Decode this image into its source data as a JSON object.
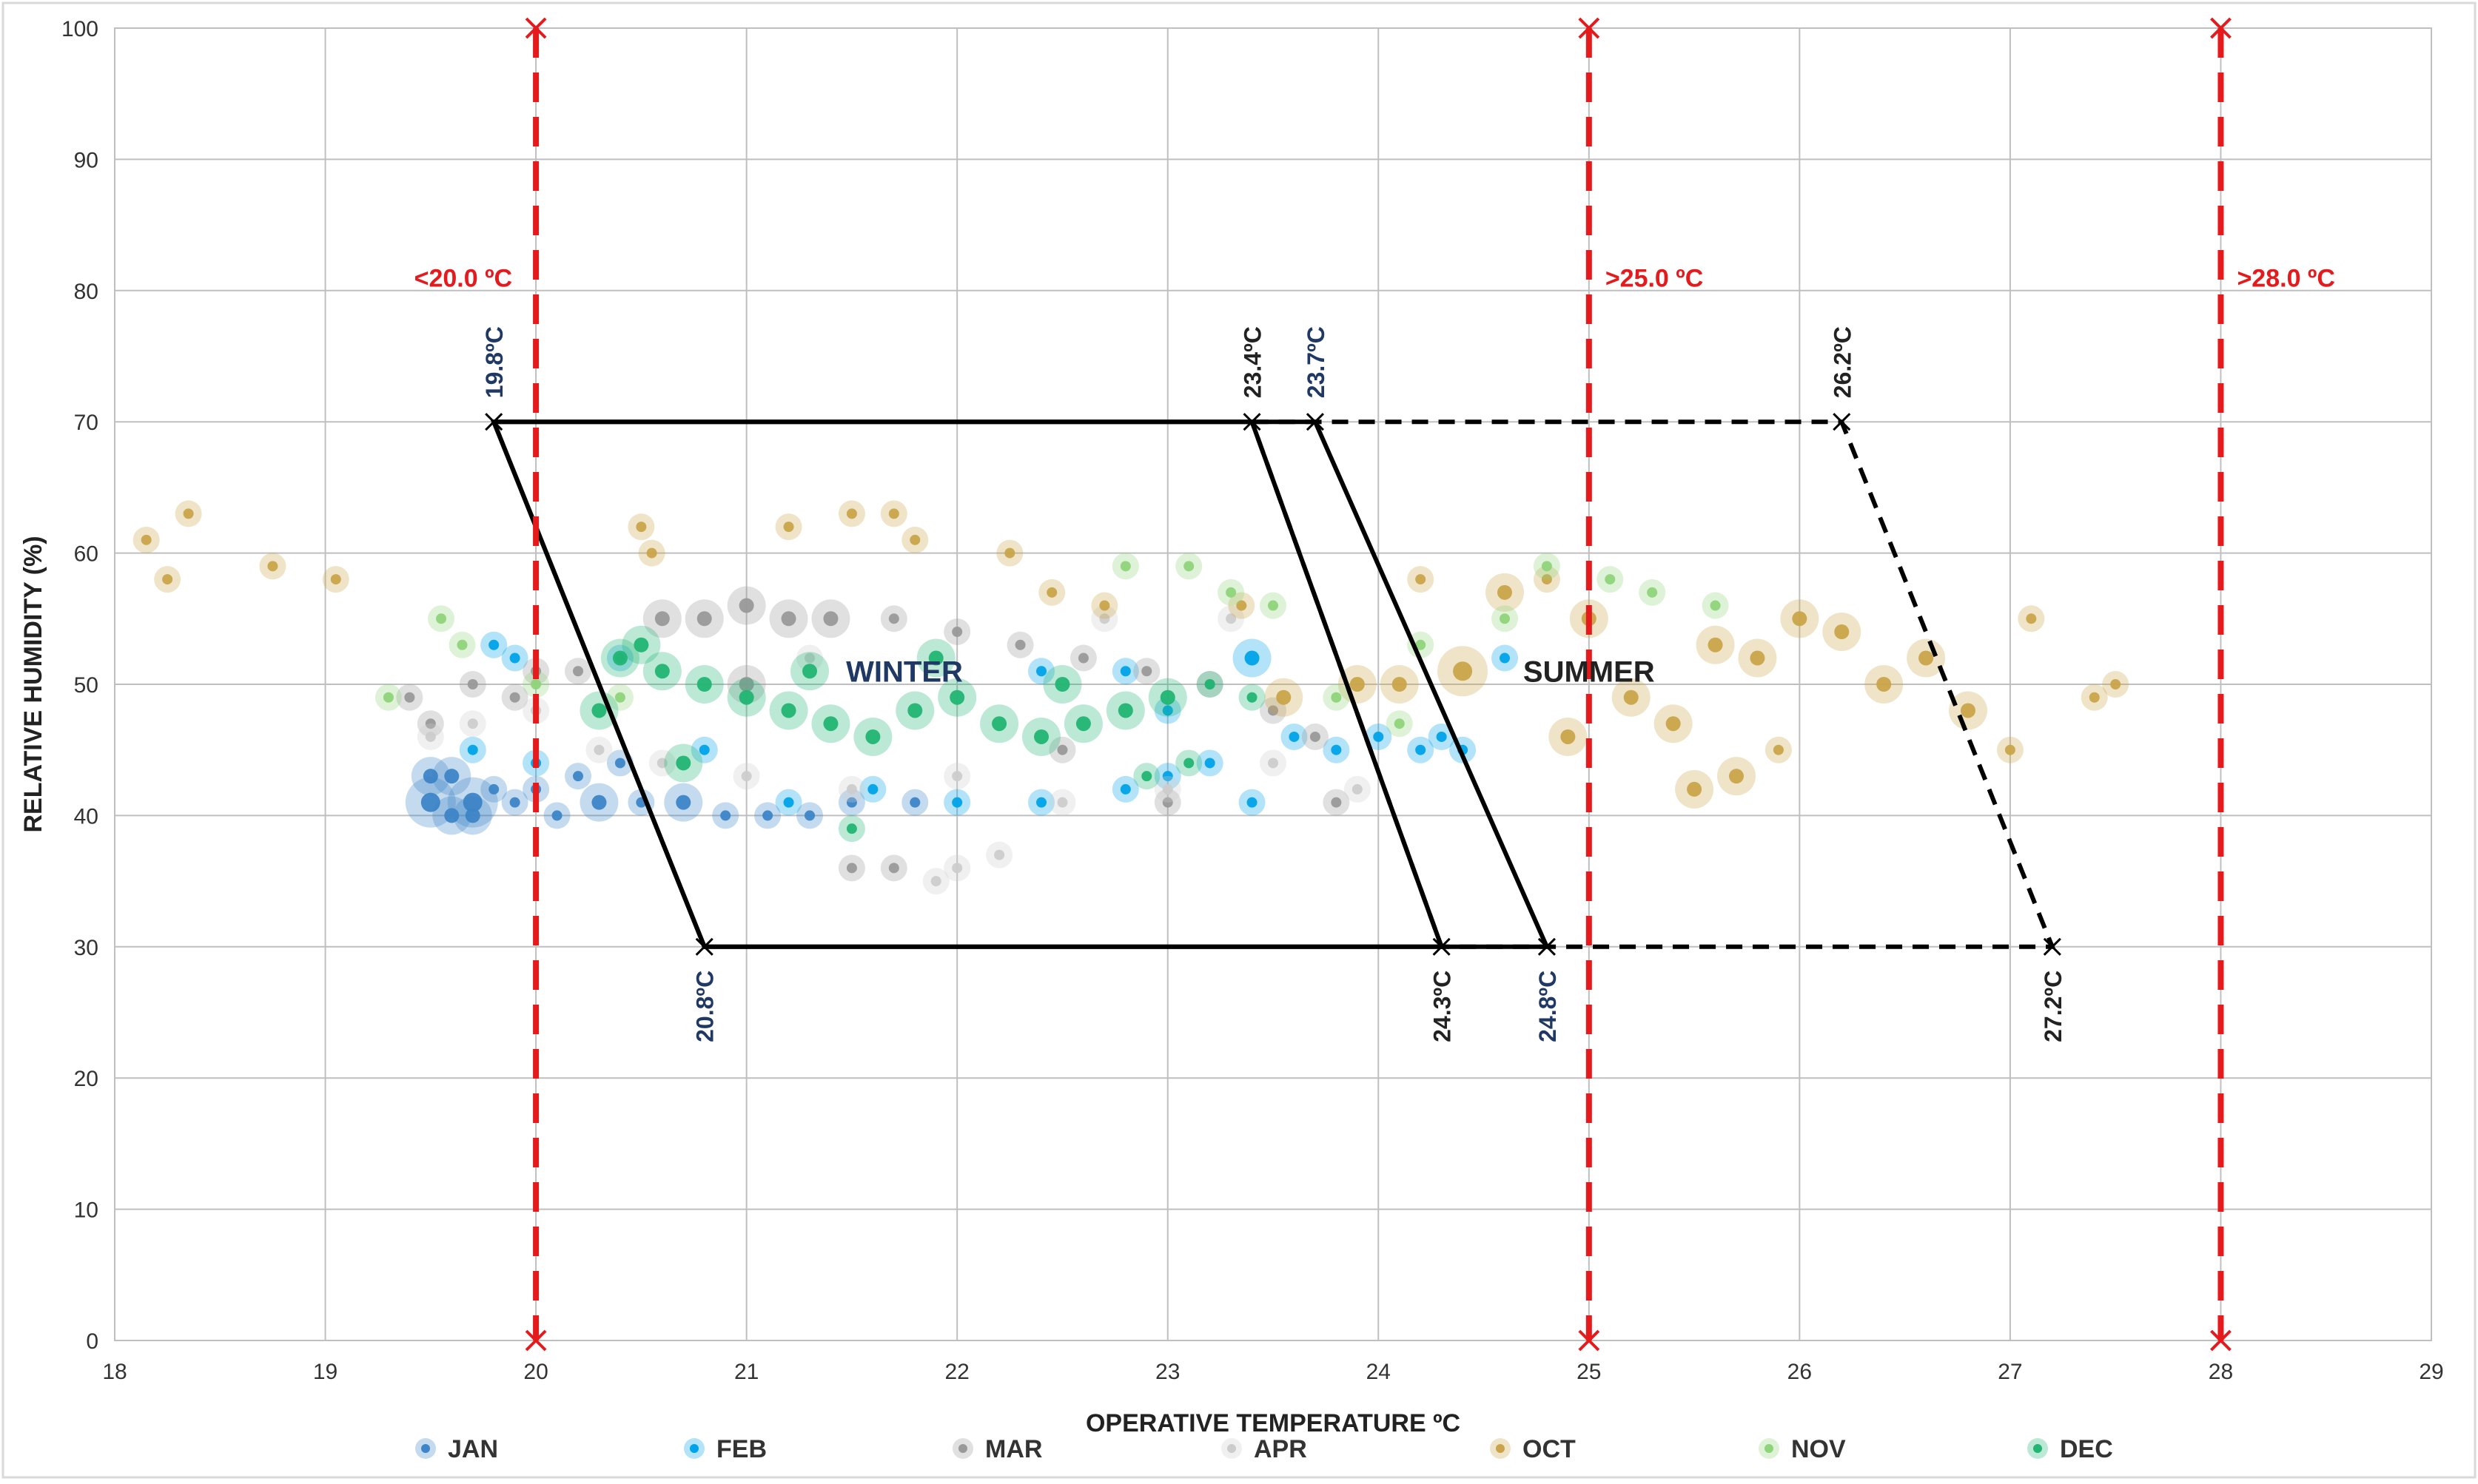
{
  "chart_data": {
    "type": "scatter",
    "xlabel": "OPERATIVE TEMPERATURE  ºC",
    "ylabel": "RELATIVE HUMIDITY (%)",
    "xlim": [
      18,
      29
    ],
    "ylim": [
      0,
      100
    ],
    "xticks": [
      18,
      19,
      20,
      21,
      22,
      23,
      24,
      25,
      26,
      27,
      28,
      29
    ],
    "yticks": [
      0,
      10,
      20,
      30,
      40,
      50,
      60,
      70,
      80,
      90,
      100
    ],
    "grid": true,
    "legend_position": "bottom",
    "limit_lines": [
      {
        "x": 20,
        "label": "<20.0 ºC",
        "label_side": "left",
        "color": "#e41a1c"
      },
      {
        "x": 25,
        "label": ">25.0 ºC",
        "label_side": "right",
        "color": "#e41a1c"
      },
      {
        "x": 28,
        "label": ">28.0 ºC",
        "label_side": "right",
        "color": "#e41a1c"
      }
    ],
    "comfort_zones": [
      {
        "name": "WINTER",
        "style": "solid",
        "corners": [
          [
            19.8,
            70
          ],
          [
            23.4,
            70
          ],
          [
            24.3,
            30
          ],
          [
            20.8,
            30
          ]
        ]
      },
      {
        "name": "WINTER",
        "style": "solid",
        "corners": [
          [
            19.8,
            70
          ],
          [
            23.7,
            70
          ],
          [
            24.8,
            30
          ],
          [
            20.8,
            30
          ]
        ]
      },
      {
        "name": "SUMMER",
        "style": "dashed",
        "corners": [
          [
            23.4,
            70
          ],
          [
            26.2,
            70
          ],
          [
            27.2,
            30
          ],
          [
            24.3,
            30
          ]
        ]
      }
    ],
    "corner_labels": [
      {
        "text": "19.8ºC",
        "x": 19.8,
        "y": 70,
        "pos": "above",
        "color": "#1f3864"
      },
      {
        "text": "23.4ºC",
        "x": 23.4,
        "y": 70,
        "pos": "above",
        "color": "#222222"
      },
      {
        "text": "23.7ºC",
        "x": 23.7,
        "y": 70,
        "pos": "above",
        "color": "#1f3864"
      },
      {
        "text": "26.2ºC",
        "x": 26.2,
        "y": 70,
        "pos": "above",
        "color": "#222222"
      },
      {
        "text": "20.8ºC",
        "x": 20.8,
        "y": 30,
        "pos": "below",
        "color": "#1f3864"
      },
      {
        "text": "24.3ºC",
        "x": 24.3,
        "y": 30,
        "pos": "below",
        "color": "#222222"
      },
      {
        "text": "24.8ºC",
        "x": 24.8,
        "y": 30,
        "pos": "below",
        "color": "#1f3864"
      },
      {
        "text": "27.2ºC",
        "x": 27.2,
        "y": 30,
        "pos": "below",
        "color": "#222222"
      }
    ],
    "season_labels": [
      {
        "text": "WINTER",
        "x": 21.75,
        "y": 51,
        "color": "#1f3864"
      },
      {
        "text": "SUMMER",
        "x": 25.0,
        "y": 51,
        "color": "#222222"
      }
    ],
    "series": [
      {
        "name": "JAN",
        "color": "#3d85c6",
        "points": [
          [
            19.5,
            43
          ],
          [
            19.6,
            43
          ],
          [
            19.5,
            41
          ],
          [
            19.7,
            41
          ],
          [
            19.7,
            40
          ],
          [
            19.6,
            40
          ],
          [
            19.8,
            42
          ],
          [
            19.9,
            41
          ],
          [
            20.0,
            42
          ],
          [
            20.1,
            40
          ],
          [
            20.3,
            41
          ],
          [
            20.5,
            41
          ],
          [
            20.7,
            41
          ],
          [
            20.9,
            40
          ],
          [
            21.1,
            40
          ],
          [
            21.3,
            40
          ],
          [
            21.5,
            41
          ],
          [
            21.8,
            41
          ],
          [
            20.2,
            43
          ],
          [
            20.4,
            44
          ]
        ],
        "sizes": [
          2,
          2,
          3,
          3,
          2,
          2,
          1,
          1,
          1,
          1,
          2,
          1,
          2,
          1,
          1,
          1,
          1,
          1,
          1,
          1
        ]
      },
      {
        "name": "FEB",
        "color": "#00a2e8",
        "points": [
          [
            19.8,
            53
          ],
          [
            19.9,
            52
          ],
          [
            19.7,
            45
          ],
          [
            20.0,
            44
          ],
          [
            20.4,
            52
          ],
          [
            20.8,
            45
          ],
          [
            21.2,
            41
          ],
          [
            21.6,
            42
          ],
          [
            22.0,
            41
          ],
          [
            22.4,
            41
          ],
          [
            22.8,
            42
          ],
          [
            23.0,
            43
          ],
          [
            23.2,
            44
          ],
          [
            23.4,
            41
          ],
          [
            23.6,
            46
          ],
          [
            23.8,
            45
          ],
          [
            24.0,
            46
          ],
          [
            24.2,
            45
          ],
          [
            24.4,
            45
          ],
          [
            24.6,
            52
          ],
          [
            23.4,
            52
          ],
          [
            22.8,
            51
          ],
          [
            22.4,
            51
          ],
          [
            23.0,
            48
          ],
          [
            24.3,
            46
          ]
        ],
        "sizes": [
          1,
          1,
          1,
          1,
          1,
          1,
          1,
          1,
          1,
          1,
          1,
          1,
          1,
          1,
          1,
          1,
          1,
          1,
          1,
          1,
          2,
          1,
          1,
          1,
          1
        ]
      },
      {
        "name": "MAR",
        "color": "#999999",
        "points": [
          [
            19.4,
            49
          ],
          [
            19.5,
            47
          ],
          [
            19.7,
            50
          ],
          [
            19.9,
            49
          ],
          [
            20.0,
            51
          ],
          [
            20.2,
            51
          ],
          [
            20.6,
            55
          ],
          [
            20.8,
            55
          ],
          [
            21.0,
            56
          ],
          [
            21.2,
            55
          ],
          [
            21.4,
            55
          ],
          [
            21.7,
            55
          ],
          [
            22.0,
            54
          ],
          [
            22.3,
            53
          ],
          [
            22.6,
            52
          ],
          [
            22.9,
            51
          ],
          [
            23.2,
            50
          ],
          [
            23.5,
            48
          ],
          [
            23.7,
            46
          ],
          [
            21.5,
            36
          ],
          [
            21.7,
            36
          ],
          [
            21.0,
            50
          ],
          [
            22.5,
            45
          ],
          [
            23.0,
            41
          ],
          [
            23.8,
            41
          ]
        ],
        "sizes": [
          1,
          1,
          1,
          1,
          1,
          1,
          2,
          2,
          2,
          2,
          2,
          1,
          1,
          1,
          1,
          1,
          1,
          1,
          1,
          1,
          1,
          2,
          1,
          1,
          1
        ]
      },
      {
        "name": "APR",
        "color": "#cccccc",
        "points": [
          [
            19.5,
            46
          ],
          [
            19.7,
            47
          ],
          [
            20.0,
            48
          ],
          [
            20.3,
            45
          ],
          [
            20.6,
            44
          ],
          [
            21.0,
            43
          ],
          [
            21.5,
            42
          ],
          [
            22.0,
            43
          ],
          [
            22.2,
            37
          ],
          [
            22.0,
            36
          ],
          [
            21.9,
            35
          ],
          [
            22.5,
            41
          ],
          [
            23.0,
            42
          ],
          [
            23.5,
            44
          ],
          [
            23.9,
            42
          ],
          [
            21.3,
            52
          ],
          [
            22.7,
            55
          ],
          [
            23.3,
            55
          ]
        ],
        "sizes": [
          1,
          1,
          1,
          1,
          1,
          1,
          1,
          1,
          1,
          1,
          1,
          1,
          1,
          1,
          1,
          1,
          1,
          1
        ]
      },
      {
        "name": "OCT",
        "color": "#c9a44a",
        "points": [
          [
            18.15,
            61
          ],
          [
            18.25,
            58
          ],
          [
            18.35,
            63
          ],
          [
            18.75,
            59
          ],
          [
            19.05,
            58
          ],
          [
            20.5,
            62
          ],
          [
            20.55,
            60
          ],
          [
            21.2,
            62
          ],
          [
            21.5,
            63
          ],
          [
            21.7,
            63
          ],
          [
            21.8,
            61
          ],
          [
            22.25,
            60
          ],
          [
            22.45,
            57
          ],
          [
            22.7,
            56
          ],
          [
            23.35,
            56
          ],
          [
            23.55,
            49
          ],
          [
            23.9,
            50
          ],
          [
            24.1,
            50
          ],
          [
            24.2,
            58
          ],
          [
            24.4,
            51
          ],
          [
            24.6,
            57
          ],
          [
            24.8,
            58
          ],
          [
            25.0,
            55
          ],
          [
            25.2,
            49
          ],
          [
            25.4,
            47
          ],
          [
            25.6,
            53
          ],
          [
            25.8,
            52
          ],
          [
            26.0,
            55
          ],
          [
            26.2,
            54
          ],
          [
            26.4,
            50
          ],
          [
            26.6,
            52
          ],
          [
            26.8,
            48
          ],
          [
            27.0,
            45
          ],
          [
            27.1,
            55
          ],
          [
            27.4,
            49
          ],
          [
            27.5,
            50
          ],
          [
            25.5,
            42
          ],
          [
            25.7,
            43
          ],
          [
            25.9,
            45
          ],
          [
            24.9,
            46
          ]
        ],
        "sizes": [
          1,
          1,
          1,
          1,
          1,
          1,
          1,
          1,
          1,
          1,
          1,
          1,
          1,
          1,
          1,
          2,
          2,
          2,
          1,
          3,
          2,
          1,
          2,
          2,
          2,
          2,
          2,
          2,
          2,
          2,
          2,
          2,
          1,
          1,
          1,
          1,
          2,
          2,
          1,
          2
        ]
      },
      {
        "name": "NOV",
        "color": "#8fd37a",
        "points": [
          [
            19.3,
            49
          ],
          [
            19.55,
            55
          ],
          [
            19.65,
            53
          ],
          [
            20.0,
            50
          ],
          [
            20.4,
            49
          ],
          [
            22.8,
            59
          ],
          [
            23.1,
            59
          ],
          [
            23.3,
            57
          ],
          [
            23.5,
            56
          ],
          [
            24.2,
            53
          ],
          [
            24.6,
            55
          ],
          [
            24.8,
            59
          ],
          [
            25.1,
            58
          ],
          [
            25.3,
            57
          ],
          [
            25.6,
            56
          ],
          [
            23.8,
            49
          ],
          [
            24.1,
            47
          ]
        ],
        "sizes": [
          1,
          1,
          1,
          1,
          1,
          1,
          1,
          1,
          1,
          1,
          1,
          1,
          1,
          1,
          1,
          1,
          1
        ]
      },
      {
        "name": "DEC",
        "color": "#22b573",
        "points": [
          [
            20.4,
            52
          ],
          [
            20.5,
            53
          ],
          [
            20.6,
            51
          ],
          [
            20.8,
            50
          ],
          [
            21.0,
            49
          ],
          [
            21.2,
            48
          ],
          [
            21.4,
            47
          ],
          [
            21.6,
            46
          ],
          [
            21.8,
            48
          ],
          [
            22.0,
            49
          ],
          [
            22.2,
            47
          ],
          [
            22.4,
            46
          ],
          [
            22.6,
            47
          ],
          [
            22.8,
            48
          ],
          [
            23.0,
            49
          ],
          [
            23.2,
            50
          ],
          [
            23.4,
            49
          ],
          [
            20.7,
            44
          ],
          [
            21.3,
            51
          ],
          [
            21.9,
            52
          ],
          [
            22.5,
            50
          ],
          [
            23.1,
            44
          ],
          [
            21.5,
            39
          ],
          [
            22.9,
            43
          ],
          [
            20.3,
            48
          ]
        ],
        "sizes": [
          2,
          2,
          2,
          2,
          2,
          2,
          2,
          2,
          2,
          2,
          2,
          2,
          2,
          2,
          2,
          1,
          1,
          2,
          2,
          2,
          2,
          1,
          1,
          1,
          2
        ]
      }
    ]
  }
}
